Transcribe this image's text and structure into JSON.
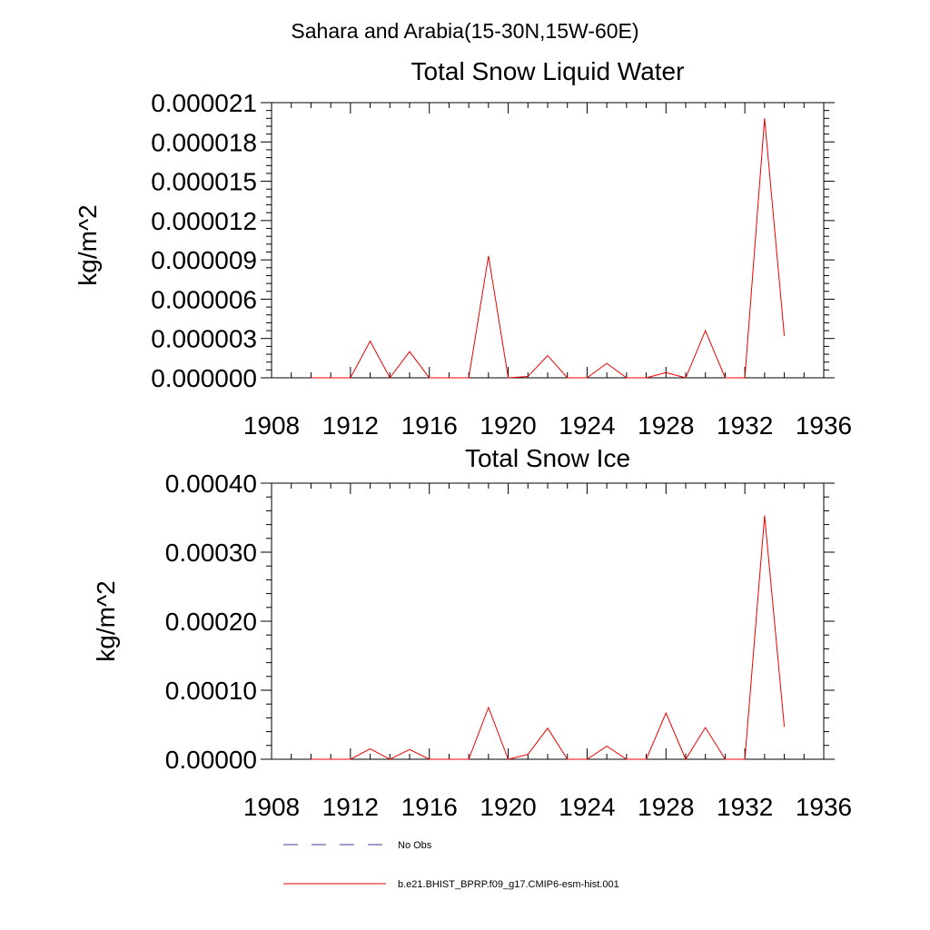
{
  "header": {
    "region_title": "Sahara and Arabia(15-30N,15W-60E)"
  },
  "colors": {
    "series_model": "#ee0000",
    "series_obs": "#3b3b8f",
    "axis": "#000000"
  },
  "legend": {
    "obs_label": "No Obs",
    "model_label": "b.e21.BHIST_BPRP.f09_g17.CMIP6-esm-hist.001"
  },
  "chart_data": [
    {
      "type": "line",
      "title": "Total Snow Liquid Water",
      "ylabel": "kg/m^2",
      "xlabel": "",
      "xlim": [
        1908,
        1936
      ],
      "ylim": [
        0,
        2.1e-05
      ],
      "x_ticks": [
        "1908",
        "1912",
        "1916",
        "1920",
        "1924",
        "1928",
        "1932",
        "1936"
      ],
      "y_ticks": [
        "0.000000",
        "0.000003",
        "0.000006",
        "0.000009",
        "0.000012",
        "0.000015",
        "0.000018",
        "0.000021"
      ],
      "x": [
        1910,
        1911,
        1912,
        1913,
        1914,
        1915,
        1916,
        1917,
        1918,
        1919,
        1920,
        1921,
        1922,
        1923,
        1924,
        1925,
        1926,
        1927,
        1928,
        1929,
        1930,
        1931,
        1932,
        1933,
        1934
      ],
      "series": [
        {
          "name": "b.e21.BHIST_BPRP.f09_g17.CMIP6-esm-hist.001",
          "values": [
            0,
            0,
            0,
            2.8e-06,
            0,
            2e-06,
            0,
            0,
            0,
            9.3e-06,
            0,
            1e-07,
            1.7e-06,
            0,
            0,
            1.1e-06,
            0,
            0,
            4e-07,
            0,
            3.6e-06,
            0,
            0,
            1.98e-05,
            3.2e-06
          ]
        }
      ]
    },
    {
      "type": "line",
      "title": "Total Snow Ice",
      "ylabel": "kg/m^2",
      "xlabel": "",
      "xlim": [
        1908,
        1936
      ],
      "ylim": [
        0,
        0.0004
      ],
      "x_ticks": [
        "1908",
        "1912",
        "1916",
        "1920",
        "1924",
        "1928",
        "1932",
        "1936"
      ],
      "y_ticks": [
        "0.00000",
        "0.00010",
        "0.00020",
        "0.00030",
        "0.00040"
      ],
      "x": [
        1910,
        1911,
        1912,
        1913,
        1914,
        1915,
        1916,
        1917,
        1918,
        1919,
        1920,
        1921,
        1922,
        1923,
        1924,
        1925,
        1926,
        1927,
        1928,
        1929,
        1930,
        1931,
        1932,
        1933,
        1934
      ],
      "series": [
        {
          "name": "b.e21.BHIST_BPRP.f09_g17.CMIP6-esm-hist.001",
          "values": [
            0,
            0,
            0,
            1.5e-05,
            0,
            1.4e-05,
            0,
            0,
            0,
            7.5e-05,
            0,
            7e-06,
            4.5e-05,
            0,
            0,
            1.9e-05,
            0,
            0,
            6.7e-05,
            0,
            4.6e-05,
            0,
            0,
            0.000353,
            4.7e-05
          ]
        }
      ]
    }
  ]
}
